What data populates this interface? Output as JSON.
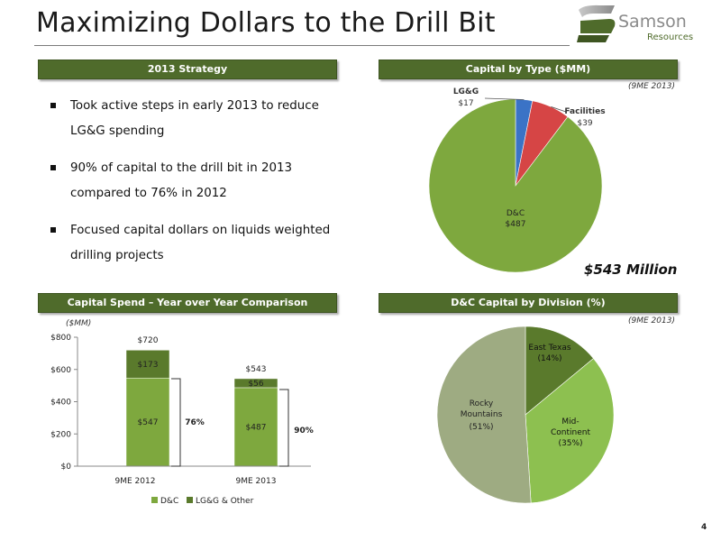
{
  "title": "Maximizing Dollars to the Drill Bit",
  "logo": {
    "line1": "Samson",
    "line2": "Resources"
  },
  "page_number": "4",
  "strategy": {
    "header": "2013 Strategy",
    "bullets": [
      "Took active steps in early 2013 to reduce LG&G spending",
      "90% of capital to the drill bit in 2013 compared to 76% in 2012",
      "Focused capital dollars on liquids weighted drilling projects"
    ]
  },
  "capital_by_type": {
    "header": "Capital by Type ($MM)",
    "note": "(9ME 2013)",
    "total": "$543 Million"
  },
  "yoy": {
    "header": "Capital Spend – Year over Year Comparison",
    "units": "($MM)"
  },
  "dc_division": {
    "header": "D&C Capital by Division (%)",
    "note": "(9ME 2013)"
  },
  "colors": {
    "header_bg": "#4f6b2b",
    "dc": "#7ea83e",
    "lgg": "#5a7a2c",
    "facilities": "#d64545",
    "lg_and_g": "#3b73c6",
    "light_green": "#8dc050",
    "pale_green": "#9eab82"
  },
  "chart_data": [
    {
      "type": "pie",
      "title": "",
      "slices": [
        {
          "label": "LG&G",
          "value": 17,
          "value_label": "$17",
          "color": "#3b73c6"
        },
        {
          "label": "Facilities",
          "value": 39,
          "value_label": "$39",
          "color": "#d64545"
        },
        {
          "label": "D&C",
          "value": 487,
          "value_label": "$487",
          "color": "#7ea83e"
        }
      ]
    },
    {
      "type": "bar",
      "stacked": true,
      "categories": [
        "9ME 2012",
        "9ME 2013"
      ],
      "series": [
        {
          "name": "D&C",
          "values": [
            547,
            487
          ],
          "labels": [
            "$547",
            "$487"
          ],
          "color": "#7ea83e"
        },
        {
          "name": "LG&G & Other",
          "values": [
            173,
            56
          ],
          "labels": [
            "$173",
            "$56"
          ],
          "color": "#5a7a2c"
        }
      ],
      "totals": [
        "$720",
        "$543"
      ],
      "shares": [
        "76%",
        "90%"
      ],
      "ylim": [
        0,
        800
      ],
      "yticks": [
        0,
        200,
        400,
        600,
        800
      ],
      "ytick_labels": [
        "$0",
        "$200",
        "$400",
        "$600",
        "$800"
      ],
      "legend": "bottom"
    },
    {
      "type": "pie",
      "title": "",
      "slices": [
        {
          "label": "East Texas",
          "pct_label": "(14%)",
          "value": 14,
          "color": "#5a7a2c"
        },
        {
          "label": "Mid-Continent",
          "label_lines": [
            "Mid-",
            "Continent"
          ],
          "pct_label": "(35%)",
          "value": 35,
          "color": "#8dc050"
        },
        {
          "label": "Rocky Mountains",
          "label_lines": [
            "Rocky",
            "Mountains"
          ],
          "pct_label": "(51%)",
          "value": 51,
          "color": "#9eab82"
        }
      ]
    }
  ]
}
